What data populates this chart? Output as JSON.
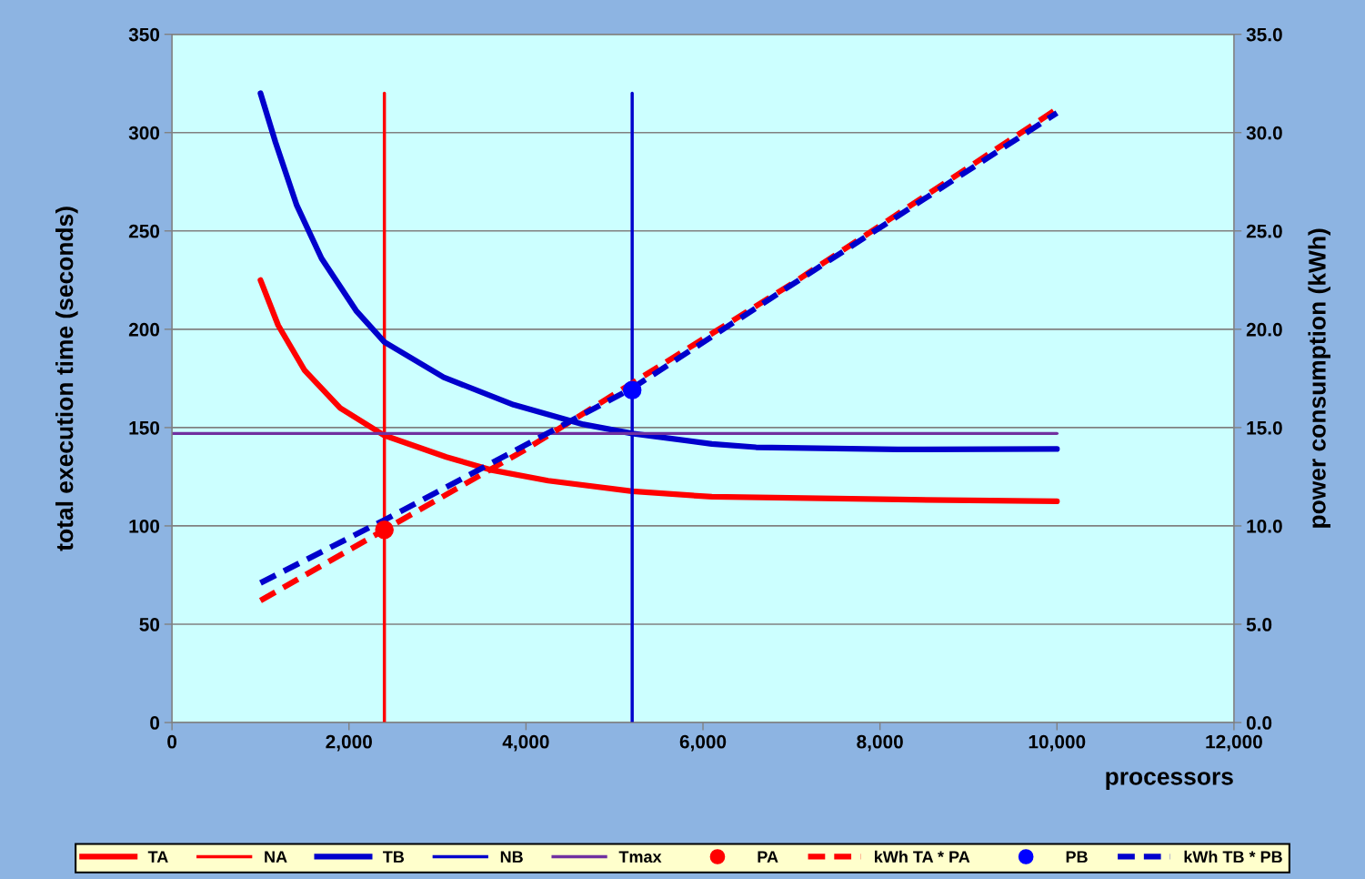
{
  "chart_data": {
    "type": "line",
    "xlabel": "processors",
    "ylabel": "total execution time (seconds)",
    "y2label": "power consumption (kWh)",
    "xlim": [
      0,
      12000
    ],
    "xticks": [
      0,
      {
        "value": 2000,
        "label": "2,000"
      },
      {
        "value": 4000,
        "label": "4,000"
      },
      {
        "value": 6000,
        "label": "6,000"
      },
      {
        "value": 8000,
        "label": "8,000"
      },
      {
        "value": 10000,
        "label": "10,000"
      },
      {
        "value": 12000,
        "label": "12,000"
      }
    ],
    "ylim": [
      0,
      350
    ],
    "yticks": [
      0,
      50,
      100,
      150,
      200,
      250,
      300,
      350
    ],
    "y2lim": [
      0,
      35
    ],
    "y2ticks": [
      {
        "value": 0,
        "label": "0.0"
      },
      {
        "value": 5,
        "label": "5.0"
      },
      {
        "value": 10,
        "label": "10.0"
      },
      {
        "value": 15,
        "label": "15.0"
      },
      {
        "value": 20,
        "label": "20.0"
      },
      {
        "value": 25,
        "label": "25.0"
      },
      {
        "value": 30,
        "label": "30.0"
      },
      {
        "value": 35,
        "label": "35.0"
      }
    ],
    "grid": "y",
    "legend": "bottom",
    "series": [
      {
        "name": "TA",
        "color": "#ff0000",
        "line_style": "solid",
        "x": [
          1000,
          1200,
          1500,
          1900,
          2400,
          3100,
          3600,
          4250,
          5200,
          6100,
          8200,
          10000
        ],
        "values": [
          225,
          202,
          179,
          160,
          146,
          135,
          128.5,
          123,
          117.6,
          114.8,
          113.4,
          112.5
        ]
      },
      {
        "name": "NA",
        "color": "#ff0000",
        "line_style": "solid",
        "x": [
          2400,
          2400
        ],
        "values": [
          0,
          320
        ]
      },
      {
        "name": "TB",
        "color": "#0000cc",
        "line_style": "solid",
        "x": [
          1000,
          1170,
          1410,
          1690,
          2080,
          2400,
          3070,
          3860,
          4650,
          5200,
          6100,
          6600,
          8200,
          10000
        ],
        "values": [
          320,
          295,
          263,
          236,
          209.5,
          193.5,
          175.6,
          161.6,
          151.6,
          147,
          141.7,
          140,
          138.9,
          139.1
        ]
      },
      {
        "name": "NB",
        "color": "#0000cc",
        "line_style": "solid",
        "x": [
          5200,
          5200
        ],
        "values": [
          0,
          320
        ]
      },
      {
        "name": "Tmax",
        "color": "#7030a0",
        "line_style": "solid",
        "x": [
          0,
          10000
        ],
        "values": [
          147,
          147
        ]
      },
      {
        "name": "PA",
        "type": "scatter",
        "marker": "circle",
        "color": "#ff0000",
        "axis": "y2",
        "x": [
          2400
        ],
        "values": [
          9.8
        ]
      },
      {
        "name": "kWh TA * PA",
        "color": "#ff0000",
        "line_style": "dashed",
        "axis": "y2",
        "x": [
          1000,
          2400,
          4000,
          7000,
          10000
        ],
        "values": [
          6.2,
          9.8,
          13.9,
          22.3,
          31.2
        ]
      },
      {
        "name": "PB",
        "type": "scatter",
        "marker": "circle",
        "color": "#0000ff",
        "axis": "y2",
        "x": [
          5200
        ],
        "values": [
          16.9
        ]
      },
      {
        "name": "kWh TB * PB",
        "color": "#0000cc",
        "line_style": "dashed",
        "axis": "y2",
        "x": [
          1000,
          2400,
          5200,
          10000
        ],
        "values": [
          7.1,
          10.3,
          17.0,
          31.0
        ]
      }
    ]
  }
}
